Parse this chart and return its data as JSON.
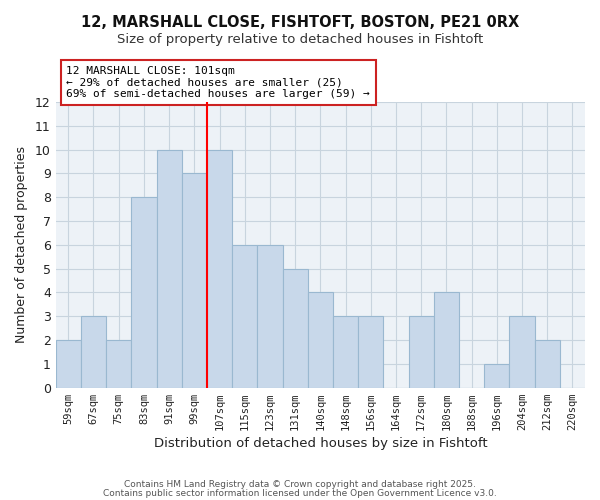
{
  "title_line1": "12, MARSHALL CLOSE, FISHTOFT, BOSTON, PE21 0RX",
  "title_line2": "Size of property relative to detached houses in Fishtoft",
  "xlabel": "Distribution of detached houses by size in Fishtoft",
  "ylabel": "Number of detached properties",
  "bar_labels": [
    "59sqm",
    "67sqm",
    "75sqm",
    "83sqm",
    "91sqm",
    "99sqm",
    "107sqm",
    "115sqm",
    "123sqm",
    "131sqm",
    "140sqm",
    "148sqm",
    "156sqm",
    "164sqm",
    "172sqm",
    "180sqm",
    "188sqm",
    "196sqm",
    "204sqm",
    "212sqm",
    "220sqm"
  ],
  "bar_values": [
    2,
    3,
    2,
    8,
    10,
    9,
    10,
    6,
    6,
    5,
    4,
    3,
    3,
    0,
    3,
    4,
    0,
    1,
    3,
    2,
    0
  ],
  "bar_color": "#c8d8ea",
  "bar_edge_color": "#9ab8d0",
  "ref_line_index": 5.5,
  "ylim": [
    0,
    12
  ],
  "yticks": [
    0,
    1,
    2,
    3,
    4,
    5,
    6,
    7,
    8,
    9,
    10,
    11,
    12
  ],
  "annotation_title": "12 MARSHALL CLOSE: 101sqm",
  "annotation_line2": "← 29% of detached houses are smaller (25)",
  "annotation_line3": "69% of semi-detached houses are larger (59) →",
  "footer_line1": "Contains HM Land Registry data © Crown copyright and database right 2025.",
  "footer_line2": "Contains public sector information licensed under the Open Government Licence v3.0.",
  "grid_color": "#c8d4de",
  "bg_color": "#edf2f7"
}
